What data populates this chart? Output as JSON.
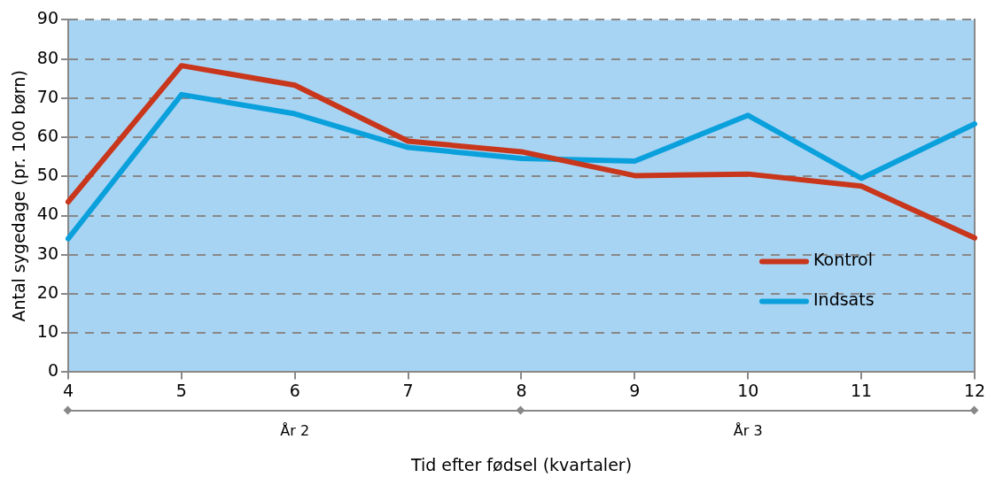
{
  "chart_data": {
    "type": "line",
    "xlabel": "Tid efter fødsel (kvartaler)",
    "ylabel": "Antal sygedage (pr. 100 børn)",
    "x": [
      4,
      5,
      6,
      7,
      8,
      9,
      10,
      11,
      12
    ],
    "series": [
      {
        "name": "Kontrol",
        "color": "#c8361b",
        "values": [
          43.5,
          78.3,
          73.3,
          59,
          56.3,
          50.2,
          50.6,
          47.5,
          34.3
        ]
      },
      {
        "name": "Indsats",
        "color": "#0aa0dc",
        "values": [
          34.1,
          70.9,
          66,
          57.4,
          54.6,
          53.9,
          65.6,
          49.5,
          63.4
        ]
      }
    ],
    "xlim": [
      4,
      12
    ],
    "xticks": [
      4,
      5,
      6,
      7,
      8,
      9,
      10,
      11,
      12
    ],
    "ylim": [
      0,
      90
    ],
    "yticks": [
      0,
      10,
      20,
      30,
      40,
      50,
      60,
      70,
      80,
      90
    ],
    "annotations": [
      "År 2",
      "År 3"
    ],
    "grid": "y",
    "legend": "bottom right",
    "marker": "none",
    "line_style": "solid"
  }
}
